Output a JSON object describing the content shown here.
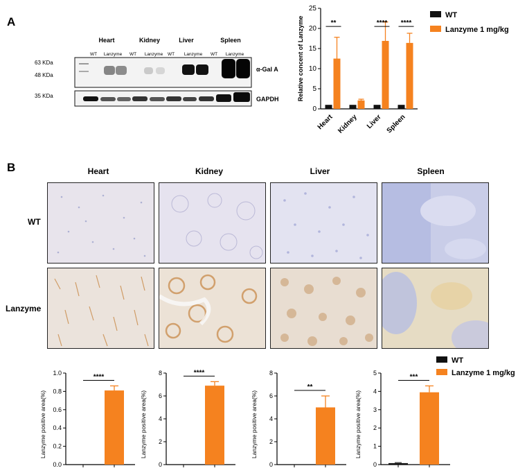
{
  "panels": {
    "a": "A",
    "b": "B"
  },
  "western_blot": {
    "tissues": [
      "Heart",
      "Kidney",
      "Liver",
      "Spleen"
    ],
    "lane_labels": [
      "WT",
      "Lanzyme",
      "WT",
      "Lanzyme",
      "WT",
      "Lanzyme",
      "WT",
      "Lanzyme"
    ],
    "marker_63": "63 KDa",
    "marker_48": "48 KDa",
    "marker_35": "35 KDa",
    "protein_top": "α-Gal A",
    "protein_bottom": "GAPDH"
  },
  "ihc": {
    "columns": [
      "Heart",
      "Kidney",
      "Liver",
      "Spleen"
    ],
    "rows": [
      "WT",
      "Lanzyme"
    ]
  },
  "legend": {
    "wt": "WT",
    "treated": "Lanzyme 1 mg/kg",
    "wt_color": "#111111",
    "treated_color": "#f5821f"
  },
  "chart_data": [
    {
      "type": "bar",
      "ylabel": "Relative concent of Lanzyme",
      "categories": [
        "Heart",
        "Kidney",
        "Liver",
        "Spleen"
      ],
      "ylim": [
        0,
        25
      ],
      "yticks": [
        0,
        5,
        10,
        15,
        20,
        25
      ],
      "series": [
        {
          "name": "WT",
          "values": [
            1,
            1,
            1,
            1
          ]
        },
        {
          "name": "Lanzyme 1 mg/kg",
          "values": [
            12.5,
            2.1,
            16.9,
            16.4
          ],
          "errors": [
            5.3,
            0.3,
            4.7,
            2.4
          ]
        }
      ],
      "significance": [
        "**",
        "",
        "****",
        "****"
      ]
    },
    {
      "type": "bar",
      "ylabel": "Lanzyme positive area(%)",
      "ylim": [
        0,
        1.0
      ],
      "yticks": [
        "0.0",
        "0.2",
        "0.4",
        "0.6",
        "0.8",
        "1.0"
      ],
      "series": [
        {
          "name": "WT",
          "values": [
            0
          ]
        },
        {
          "name": "Lanzyme 1 mg/kg",
          "values": [
            0.81
          ],
          "errors": [
            0.05
          ]
        }
      ],
      "significance": "****"
    },
    {
      "type": "bar",
      "ylabel": "Lanzyme positive area(%)",
      "ylim": [
        0,
        8
      ],
      "yticks": [
        "0",
        "2",
        "4",
        "6",
        "8"
      ],
      "series": [
        {
          "name": "WT",
          "values": [
            0
          ]
        },
        {
          "name": "Lanzyme 1 mg/kg",
          "values": [
            6.9
          ],
          "errors": [
            0.35
          ]
        }
      ],
      "significance": "****"
    },
    {
      "type": "bar",
      "ylabel": "Lanzyme positive area(%)",
      "ylim": [
        0,
        8
      ],
      "yticks": [
        "0",
        "2",
        "4",
        "6",
        "8"
      ],
      "series": [
        {
          "name": "WT",
          "values": [
            0
          ]
        },
        {
          "name": "Lanzyme 1 mg/kg",
          "values": [
            5.0
          ],
          "errors": [
            1.0
          ]
        }
      ],
      "significance": "**"
    },
    {
      "type": "bar",
      "ylabel": "Lanzyme positive area(%)",
      "ylim": [
        0,
        5
      ],
      "yticks": [
        "0",
        "1",
        "2",
        "3",
        "4",
        "5"
      ],
      "series": [
        {
          "name": "WT",
          "values": [
            0.08
          ],
          "errors": [
            0.03
          ]
        },
        {
          "name": "Lanzyme 1 mg/kg",
          "values": [
            3.95
          ],
          "errors": [
            0.35
          ]
        }
      ],
      "significance": "***"
    }
  ]
}
